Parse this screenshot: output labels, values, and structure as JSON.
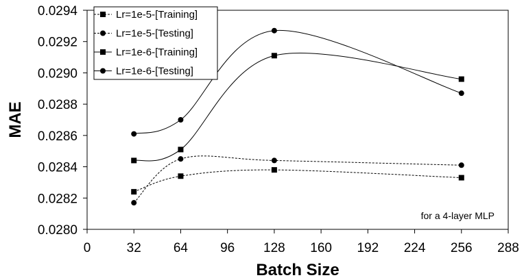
{
  "chart_data": {
    "type": "line",
    "xlabel": "Batch Size",
    "ylabel": "MAE",
    "xlim": [
      0,
      288
    ],
    "ylim": [
      0.028,
      0.0294
    ],
    "xticks": [
      "0",
      "32",
      "64",
      "96",
      "128",
      "160",
      "192",
      "224",
      "256",
      "288"
    ],
    "yticks": [
      "0.0280",
      "0.0282",
      "0.0284",
      "0.0286",
      "0.0288",
      "0.0290",
      "0.0292",
      "0.0294"
    ],
    "grid": false,
    "legend_position": "top-left",
    "annotation": "for a 4-layer MLP",
    "x": [
      32,
      64,
      128,
      256
    ],
    "series": [
      {
        "name": "Lr=1e-5-[Training]",
        "values": [
          0.02824,
          0.02834,
          0.02838,
          0.02833
        ],
        "marker": "square",
        "line": "dashed"
      },
      {
        "name": "Lr=1e-5-[Testing]",
        "values": [
          0.02817,
          0.02845,
          0.02844,
          0.02841
        ],
        "marker": "circle",
        "line": "dashed"
      },
      {
        "name": "Lr=1e-6-[Training]",
        "values": [
          0.02844,
          0.02851,
          0.02911,
          0.02896
        ],
        "marker": "square",
        "line": "solid"
      },
      {
        "name": "Lr=1e-6-[Testing]",
        "values": [
          0.02861,
          0.0287,
          0.02927,
          0.02887
        ],
        "marker": "circle",
        "line": "solid"
      }
    ]
  }
}
